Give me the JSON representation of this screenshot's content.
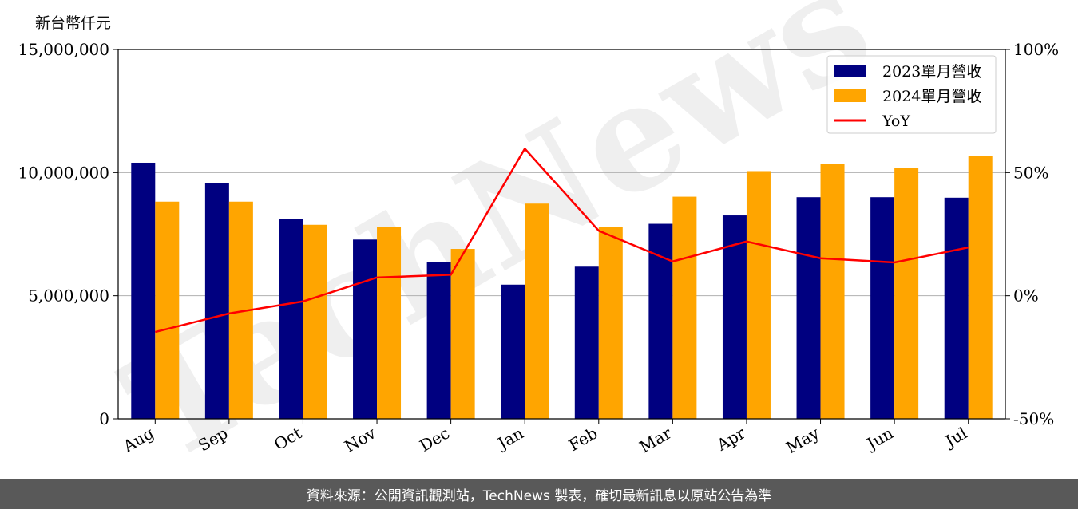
{
  "unit_label": "新台幣仟元",
  "footer_text": "資料來源：公開資訊觀測站，TechNews 製表，確切最新訊息以原站公告為準",
  "watermark_text": "TechNews",
  "chart_data": {
    "type": "bar",
    "categories": [
      "Aug",
      "Sep",
      "Oct",
      "Nov",
      "Dec",
      "Jan",
      "Feb",
      "Mar",
      "Apr",
      "May",
      "Jun",
      "Jul"
    ],
    "series": [
      {
        "name": "2023單月營收",
        "type": "bar",
        "axis": "left",
        "color": "#000080",
        "values": [
          10400000,
          9580000,
          8100000,
          7280000,
          6380000,
          5450000,
          6180000,
          7920000,
          8260000,
          9000000,
          9000000,
          8980000
        ]
      },
      {
        "name": "2024單月營收",
        "type": "bar",
        "axis": "left",
        "color": "#FFA500",
        "values": [
          8820000,
          8820000,
          7880000,
          7800000,
          6900000,
          8740000,
          7800000,
          9020000,
          10060000,
          10360000,
          10200000,
          10680000
        ]
      },
      {
        "name": "YoY",
        "type": "line",
        "axis": "right",
        "color": "#FF0000",
        "values": [
          -14.7,
          -7.2,
          -2.3,
          7.4,
          8.5,
          59.7,
          26.4,
          13.9,
          22.0,
          15.2,
          13.5,
          19.6
        ]
      }
    ],
    "y_left": {
      "min": 0,
      "max": 15000000,
      "ticks": [
        0,
        5000000,
        10000000,
        15000000
      ],
      "tick_labels": [
        "0",
        "5,000,000",
        "10,000,000",
        "15,000,000"
      ]
    },
    "y_right": {
      "min": -50,
      "max": 100,
      "ticks": [
        -50,
        0,
        50,
        100
      ],
      "tick_labels": [
        "-50%",
        "0%",
        "50%",
        "100%"
      ]
    },
    "grid": "horizontal",
    "legend_position": "top-right"
  }
}
